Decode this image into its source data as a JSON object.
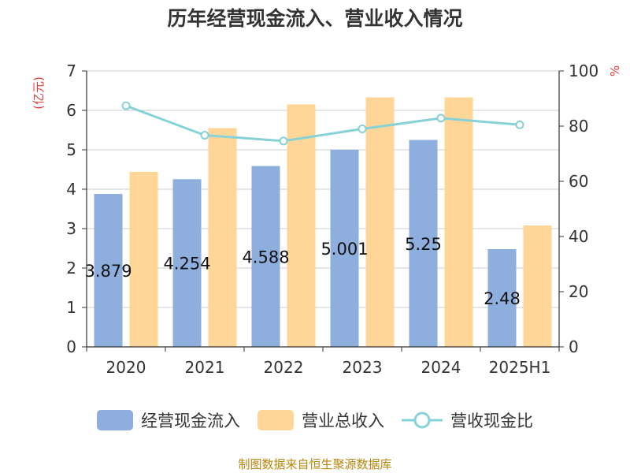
{
  "title": "历年经营现金流入、营业收入情况",
  "source_note": "制图数据来自恒生聚源数据库",
  "colors": {
    "cash_inflow": "#8eaedd",
    "revenue": "#fed697",
    "ratio": "#87d2d7",
    "left_unit": "#e83b3b",
    "axis": "#333333",
    "grid": "#cccccc"
  },
  "chart_data": {
    "type": "bar",
    "title": "历年经营现金流入、营业收入情况",
    "categories": [
      "2020",
      "2021",
      "2022",
      "2023",
      "2024",
      "2025H1"
    ],
    "y_left": {
      "unit": "(亿元)",
      "ylim": [
        0,
        7
      ],
      "ticks": [
        "0",
        "1",
        "2",
        "3",
        "4",
        "5",
        "6",
        "7"
      ]
    },
    "y_right": {
      "unit": "%",
      "ylim": [
        0,
        100
      ],
      "ticks": [
        "0",
        "20",
        "40",
        "60",
        "80",
        "100"
      ]
    },
    "grid": true,
    "legend_position": "bottom",
    "series": [
      {
        "name": "经营现金流入",
        "kind": "bar",
        "axis": "left",
        "values": [
          3.879,
          4.254,
          4.588,
          5.001,
          5.25,
          2.48
        ],
        "labels": [
          "3.879",
          "4.254",
          "4.588",
          "5.001",
          "5.25",
          "2.48"
        ]
      },
      {
        "name": "营业总收入",
        "kind": "bar",
        "axis": "left",
        "values": [
          4.44,
          5.55,
          6.15,
          6.33,
          6.33,
          3.08
        ]
      },
      {
        "name": "营收现金比",
        "kind": "line",
        "axis": "right",
        "values": [
          87.4,
          76.7,
          74.6,
          79.0,
          82.9,
          80.5
        ]
      }
    ]
  }
}
